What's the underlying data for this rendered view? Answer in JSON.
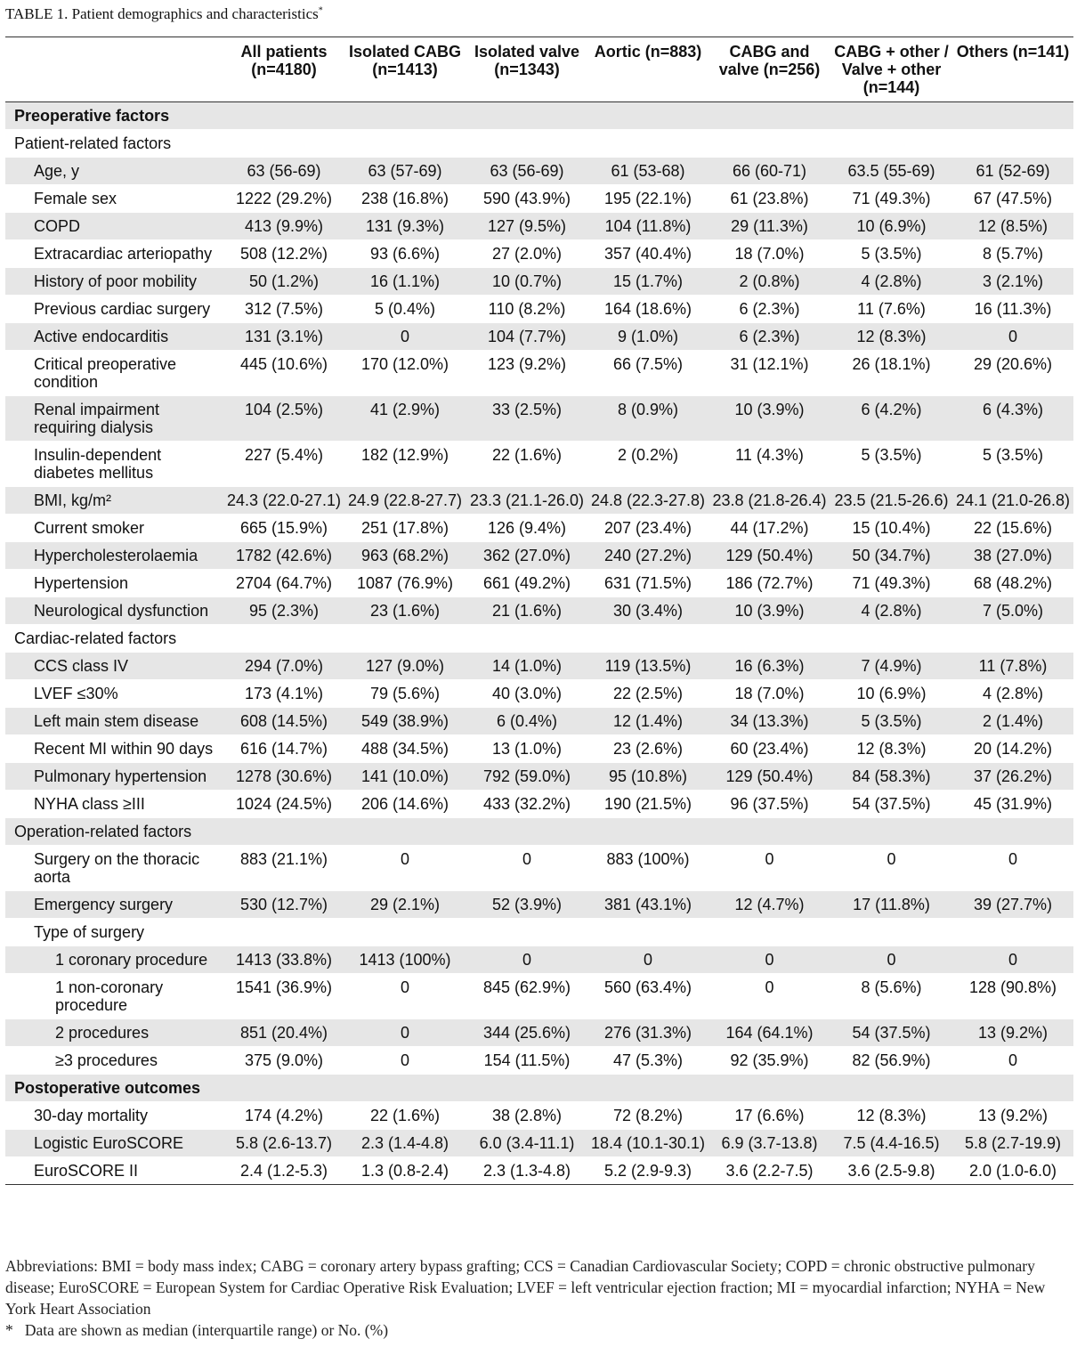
{
  "title": "TABLE 1. Patient demographics and characteristics",
  "title_mark": "*",
  "columns": [
    "All patients (n=4180)",
    "Isolated CABG (n=1413)",
    "Isolated valve (n=1343)",
    "Aortic (n=883)",
    "CABG and valve (n=256)",
    "CABG + other / Valve + other (n=144)",
    "Others (n=141)"
  ],
  "sections": [
    {
      "title": "Preoperative factors",
      "groups": [
        {
          "title": "Patient-related factors",
          "rows": [
            {
              "label": "Age, y",
              "cells": [
                "63 (56-69)",
                "63 (57-69)",
                "63 (56-69)",
                "61 (53-68)",
                "66 (60-71)",
                "63.5 (55-69)",
                "61 (52-69)"
              ]
            },
            {
              "label": "Female sex",
              "cells": [
                "1222 (29.2%)",
                "238 (16.8%)",
                "590 (43.9%)",
                "195 (22.1%)",
                "61 (23.8%)",
                "71 (49.3%)",
                "67 (47.5%)"
              ]
            },
            {
              "label": "COPD",
              "cells": [
                "413 (9.9%)",
                "131 (9.3%)",
                "127 (9.5%)",
                "104 (11.8%)",
                "29 (11.3%)",
                "10 (6.9%)",
                "12 (8.5%)"
              ]
            },
            {
              "label": "Extracardiac arteriopathy",
              "cells": [
                "508 (12.2%)",
                "93 (6.6%)",
                "27 (2.0%)",
                "357 (40.4%)",
                "18 (7.0%)",
                "5 (3.5%)",
                "8 (5.7%)"
              ]
            },
            {
              "label": "History of poor mobility",
              "cells": [
                "50 (1.2%)",
                "16 (1.1%)",
                "10 (0.7%)",
                "15 (1.7%)",
                "2 (0.8%)",
                "4 (2.8%)",
                "3 (2.1%)"
              ]
            },
            {
              "label": "Previous cardiac surgery",
              "cells": [
                "312 (7.5%)",
                "5 (0.4%)",
                "110 (8.2%)",
                "164 (18.6%)",
                "6 (2.3%)",
                "11 (7.6%)",
                "16 (11.3%)"
              ]
            },
            {
              "label": "Active endocarditis",
              "cells": [
                "131 (3.1%)",
                "0",
                "104 (7.7%)",
                "9 (1.0%)",
                "6 (2.3%)",
                "12 (8.3%)",
                "0"
              ]
            },
            {
              "label": "Critical preoperative condition",
              "cells": [
                "445 (10.6%)",
                "170 (12.0%)",
                "123 (9.2%)",
                "66 (7.5%)",
                "31 (12.1%)",
                "26 (18.1%)",
                "29 (20.6%)"
              ]
            },
            {
              "label": "Renal impairment requiring dialysis",
              "cells": [
                "104 (2.5%)",
                "41 (2.9%)",
                "33 (2.5%)",
                "8 (0.9%)",
                "10 (3.9%)",
                "6 (4.2%)",
                "6 (4.3%)"
              ]
            },
            {
              "label": "Insulin-dependent diabetes mellitus",
              "cells": [
                "227 (5.4%)",
                "182 (12.9%)",
                "22 (1.6%)",
                "2 (0.2%)",
                "11 (4.3%)",
                "5 (3.5%)",
                "5 (3.5%)"
              ]
            },
            {
              "label": "BMI, kg/m²",
              "cells": [
                "24.3 (22.0-27.1)",
                "24.9 (22.8-27.7)",
                "23.3 (21.1-26.0)",
                "24.8 (22.3-27.8)",
                "23.8 (21.8-26.4)",
                "23.5 (21.5-26.6)",
                "24.1 (21.0-26.8)"
              ]
            },
            {
              "label": "Current smoker",
              "cells": [
                "665 (15.9%)",
                "251 (17.8%)",
                "126 (9.4%)",
                "207 (23.4%)",
                "44 (17.2%)",
                "15 (10.4%)",
                "22 (15.6%)"
              ]
            },
            {
              "label": "Hypercholesterolaemia",
              "cells": [
                "1782 (42.6%)",
                "963 (68.2%)",
                "362 (27.0%)",
                "240 (27.2%)",
                "129 (50.4%)",
                "50 (34.7%)",
                "38 (27.0%)"
              ]
            },
            {
              "label": "Hypertension",
              "cells": [
                "2704 (64.7%)",
                "1087 (76.9%)",
                "661 (49.2%)",
                "631 (71.5%)",
                "186 (72.7%)",
                "71 (49.3%)",
                "68 (48.2%)"
              ]
            },
            {
              "label": "Neurological dysfunction",
              "cells": [
                "95 (2.3%)",
                "23 (1.6%)",
                "21 (1.6%)",
                "30 (3.4%)",
                "10 (3.9%)",
                "4 (2.8%)",
                "7 (5.0%)"
              ]
            }
          ]
        },
        {
          "title": "Cardiac-related factors",
          "rows": [
            {
              "label": "CCS class IV",
              "cells": [
                "294 (7.0%)",
                "127 (9.0%)",
                "14 (1.0%)",
                "119 (13.5%)",
                "16 (6.3%)",
                "7 (4.9%)",
                "11 (7.8%)"
              ]
            },
            {
              "label": "LVEF ≤30%",
              "cells": [
                "173 (4.1%)",
                "79 (5.6%)",
                "40 (3.0%)",
                "22 (2.5%)",
                "18 (7.0%)",
                "10 (6.9%)",
                "4 (2.8%)"
              ]
            },
            {
              "label": "Left main stem disease",
              "cells": [
                "608 (14.5%)",
                "549 (38.9%)",
                "6 (0.4%)",
                "12 (1.4%)",
                "34 (13.3%)",
                "5 (3.5%)",
                "2 (1.4%)"
              ]
            },
            {
              "label": "Recent MI within 90 days",
              "cells": [
                "616 (14.7%)",
                "488 (34.5%)",
                "13 (1.0%)",
                "23 (2.6%)",
                "60 (23.4%)",
                "12 (8.3%)",
                "20 (14.2%)"
              ]
            },
            {
              "label": "Pulmonary hypertension",
              "cells": [
                "1278 (30.6%)",
                "141 (10.0%)",
                "792 (59.0%)",
                "95 (10.8%)",
                "129 (50.4%)",
                "84 (58.3%)",
                "37 (26.2%)"
              ]
            },
            {
              "label": "NYHA class ≥III",
              "cells": [
                "1024 (24.5%)",
                "206 (14.6%)",
                "433 (32.2%)",
                "190 (21.5%)",
                "96 (37.5%)",
                "54 (37.5%)",
                "45 (31.9%)"
              ]
            }
          ]
        },
        {
          "title": "Operation-related factors",
          "rows": [
            {
              "label": "Surgery on the thoracic aorta",
              "cells": [
                "883 (21.1%)",
                "0",
                "0",
                "883 (100%)",
                "0",
                "0",
                "0"
              ]
            },
            {
              "label": "Emergency surgery",
              "cells": [
                "530 (12.7%)",
                "29 (2.1%)",
                "52 (3.9%)",
                "381 (43.1%)",
                "12 (4.7%)",
                "17 (11.8%)",
                "39 (27.7%)"
              ]
            },
            {
              "label": "Type of surgery",
              "subrows": [
                {
                  "label": "1 coronary procedure",
                  "cells": [
                    "1413 (33.8%)",
                    "1413 (100%)",
                    "0",
                    "0",
                    "0",
                    "0",
                    "0"
                  ]
                },
                {
                  "label": "1 non-coronary procedure",
                  "cells": [
                    "1541 (36.9%)",
                    "0",
                    "845 (62.9%)",
                    "560 (63.4%)",
                    "0",
                    "8 (5.6%)",
                    "128 (90.8%)"
                  ]
                },
                {
                  "label": "2 procedures",
                  "cells": [
                    "851 (20.4%)",
                    "0",
                    "344 (25.6%)",
                    "276 (31.3%)",
                    "164 (64.1%)",
                    "54 (37.5%)",
                    "13 (9.2%)"
                  ]
                },
                {
                  "label": "≥3 procedures",
                  "cells": [
                    "375 (9.0%)",
                    "0",
                    "154 (11.5%)",
                    "47 (5.3%)",
                    "92 (35.9%)",
                    "82 (56.9%)",
                    "0"
                  ]
                }
              ]
            }
          ]
        }
      ]
    },
    {
      "title": "Postoperative outcomes",
      "rows": [
        {
          "label": "30-day mortality",
          "cells": [
            "174 (4.2%)",
            "22 (1.6%)",
            "38 (2.8%)",
            "72 (8.2%)",
            "17 (6.6%)",
            "12 (8.3%)",
            "13 (9.2%)"
          ]
        },
        {
          "label": "Logistic EuroSCORE",
          "cells": [
            "5.8 (2.6-13.7)",
            "2.3 (1.4-4.8)",
            "6.0 (3.4-11.1)",
            "18.4 (10.1-30.1)",
            "6.9 (3.7-13.8)",
            "7.5 (4.4-16.5)",
            "5.8 (2.7-19.9)"
          ]
        },
        {
          "label": "EuroSCORE II",
          "cells": [
            "2.4 (1.2-5.3)",
            "1.3 (0.8-2.4)",
            "2.3 (1.3-4.8)",
            "5.2 (2.9-9.3)",
            "3.6 (2.2-7.5)",
            "3.6 (2.5-9.8)",
            "2.0 (1.0-6.0)"
          ]
        }
      ]
    }
  ],
  "abbreviations": "Abbreviations: BMI = body mass index; CABG = coronary artery bypass grafting; CCS = Canadian Cardiovascular Society; COPD = chronic obstructive pulmonary disease; EuroSCORE = European System for Cardiac Operative Risk Evaluation; LVEF = left ventricular ejection fraction; MI = myocardial infarction; NYHA = New York Heart Association",
  "note_mark": "*",
  "note": "Data are shown as median (interquartile range) or No. (%)"
}
